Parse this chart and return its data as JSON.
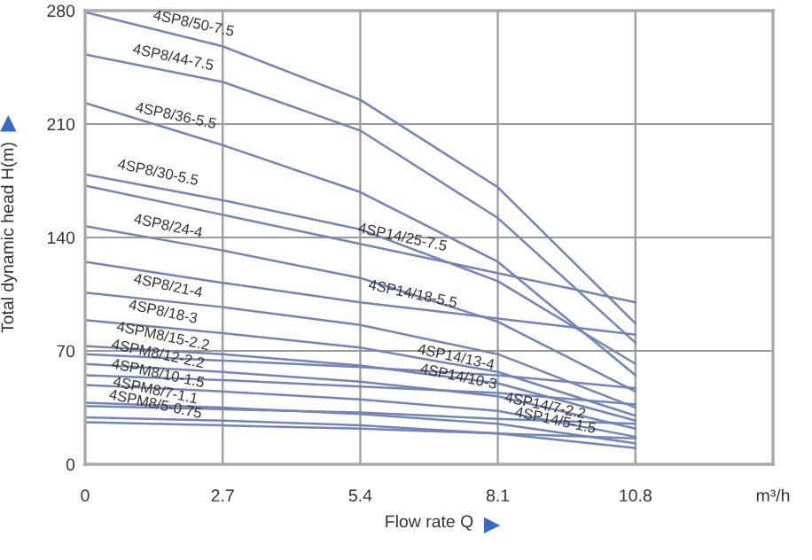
{
  "chart_data": {
    "type": "line",
    "xlabel": "Flow rate Q",
    "ylabel": "Total dynamic head H(m)",
    "x": [
      0,
      2.7,
      5.4,
      8.1,
      10.8
    ],
    "xlim": [
      0,
      13.5
    ],
    "xticks": [
      0,
      2.7,
      5.4,
      8.1,
      10.8,
      {
        "value": 13.5,
        "label": "m³/h"
      }
    ],
    "ylim": [
      0,
      280
    ],
    "yticks": [
      0,
      70,
      140,
      210,
      280
    ],
    "grid": true,
    "legend": false,
    "marker": "none",
    "line_style": "solid",
    "series": [
      {
        "color": "#7484b4",
        "values": [
          279,
          258,
          225,
          171,
          87
        ]
      },
      {
        "color": "#7484b4",
        "values": [
          253,
          236,
          206,
          152,
          75
        ]
      },
      {
        "color": "#7484b4",
        "values": [
          223,
          197,
          168,
          125,
          55
        ]
      },
      {
        "color": "#7484b4",
        "values": [
          179,
          163,
          145,
          113,
          62
        ]
      },
      {
        "color": "#7484b4",
        "values": [
          172,
          154,
          136,
          118,
          100
        ]
      },
      {
        "color": "#7484b4",
        "values": [
          147,
          132,
          115,
          88,
          45
        ]
      },
      {
        "color": "#7484b4",
        "values": [
          125,
          112,
          100,
          90,
          80
        ]
      },
      {
        "color": "#7484b4",
        "values": [
          106,
          97,
          86,
          68,
          35
        ]
      },
      {
        "color": "#7484b4",
        "values": [
          89,
          81,
          72,
          57,
          30
        ]
      },
      {
        "color": "#7484b4",
        "values": [
          73,
          68,
          61,
          50,
          27
        ]
      },
      {
        "color": "#7484b4",
        "values": [
          68,
          64,
          60,
          55,
          47
        ]
      },
      {
        "color": "#7484b4",
        "values": [
          62,
          57,
          51,
          42,
          22
        ]
      },
      {
        "color": "#7484b4",
        "values": [
          55,
          52,
          48,
          44,
          37
        ]
      },
      {
        "color": "#7484b4",
        "values": [
          49,
          45,
          40,
          33,
          17
        ]
      },
      {
        "color": "#7484b4",
        "values": [
          38,
          35,
          31,
          25,
          13
        ]
      },
      {
        "color": "#7484b4",
        "values": [
          36,
          34,
          32,
          28,
          25
        ]
      },
      {
        "color": "#7484b4",
        "values": [
          29,
          27,
          24,
          19,
          10
        ]
      },
      {
        "color": "#7484b4",
        "values": [
          26,
          24,
          22,
          19,
          16
        ]
      }
    ],
    "annotations": [
      {
        "text": "4SP8/50-7.5",
        "x": 2.1,
        "y": 263
      },
      {
        "text": "4SP8/44-7.5",
        "x": 1.7,
        "y": 242
      },
      {
        "text": "4SP8/36-5.5",
        "x": 1.75,
        "y": 206
      },
      {
        "text": "4SP8/30-5.5",
        "x": 1.4,
        "y": 171
      },
      {
        "text": "4SP8/24-4",
        "x": 1.6,
        "y": 138
      },
      {
        "text": "4SP8/21-4",
        "x": 1.6,
        "y": 101
      },
      {
        "text": "4SP8/18-3",
        "x": 1.5,
        "y": 85
      },
      {
        "text": "4SPM8/15-2.2",
        "x": 1.5,
        "y": 70
      },
      {
        "text": "4SPM8/12-2.2",
        "x": 1.4,
        "y": 59
      },
      {
        "text": "4SPM8/10-1.5",
        "x": 1.4,
        "y": 47
      },
      {
        "text": "4SPM8/7-1.1",
        "x": 1.35,
        "y": 36.5
      },
      {
        "text": "4SPM8/5-0.75",
        "x": 1.35,
        "y": 28
      },
      {
        "text": "4SP14/25-7.5",
        "x": 6.2,
        "y": 131
      },
      {
        "text": "4SP14/18-5.5",
        "x": 6.4,
        "y": 96
      },
      {
        "text": "4SP14/13-4",
        "x": 7.25,
        "y": 57
      },
      {
        "text": "4SP14/10-3",
        "x": 7.3,
        "y": 45
      },
      {
        "text": "4SP14/7-2.2",
        "x": 9.0,
        "y": 27
      },
      {
        "text": "4SP14/5-1.5",
        "x": 9.2,
        "y": 18
      }
    ]
  }
}
